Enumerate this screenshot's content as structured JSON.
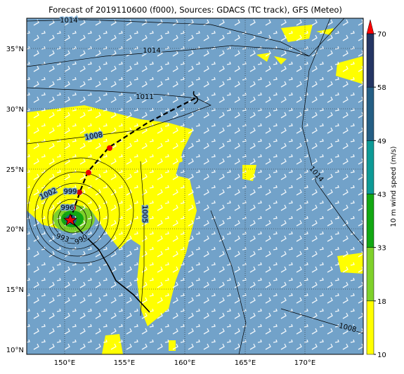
{
  "title": "Forecast of 2019110600 (f000), Sources: GDACS (TC track), GFS (Meteo)",
  "lat_labels": [
    "35°N",
    "30°N",
    "25°N",
    "20°N",
    "15°N",
    "10°N"
  ],
  "lon_labels": [
    "150°E",
    "155°E",
    "160°E",
    "165°E",
    "170°E"
  ],
  "isobar_labels": [
    "1014",
    "1014",
    "1011",
    "1008",
    "1002",
    "999",
    "996",
    "993",
    "990",
    "1005",
    "1014",
    "1008"
  ],
  "colorbar": {
    "label": "10 m wind speed (m/s)",
    "ticks": [
      10,
      18,
      33,
      43,
      49,
      58,
      70
    ],
    "colors": [
      "#ffff00",
      "#7fd12a",
      "#12a812",
      "#0d9a96",
      "#245e84",
      "#243563"
    ],
    "extend_color": "#ff0000"
  }
}
